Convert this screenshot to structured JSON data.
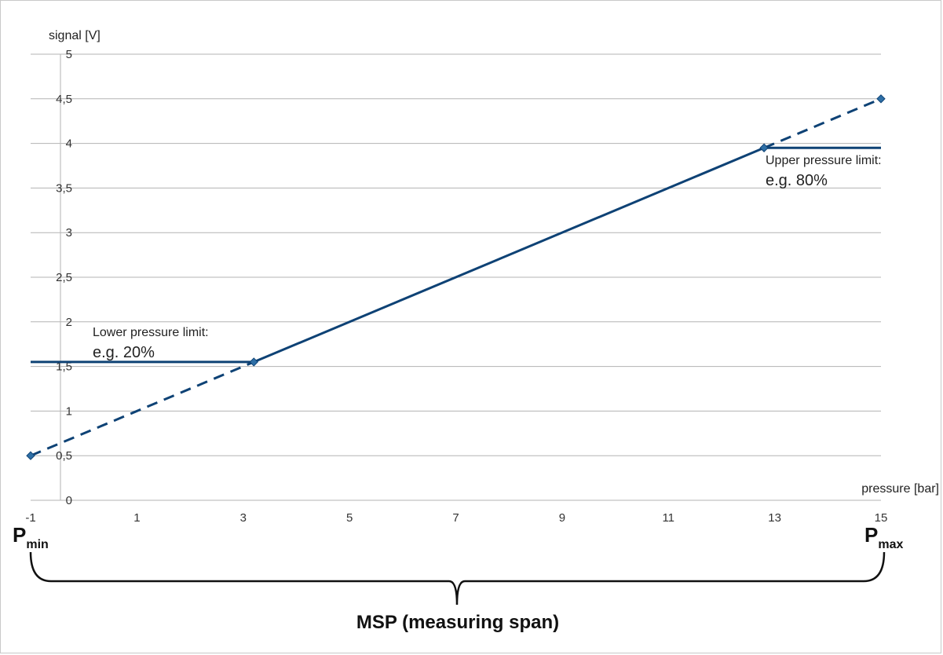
{
  "chart_data": {
    "type": "line",
    "ylabel": "signal [V]",
    "xlabel": "pressure [bar]",
    "xlim": [
      -1,
      15
    ],
    "ylim": [
      0,
      5
    ],
    "x_ticks": [
      -1,
      1,
      3,
      5,
      7,
      9,
      11,
      13,
      15
    ],
    "y_ticks": [
      0,
      0.5,
      1,
      1.5,
      2,
      2.5,
      3,
      3.5,
      4,
      4.5,
      5
    ],
    "y_tick_labels": [
      "0",
      "0,5",
      "1",
      "1,5",
      "2",
      "2,5",
      "3",
      "3,5",
      "4",
      "4,5",
      "5"
    ],
    "grid": true,
    "line_color": "#0e4275",
    "marker_color": "#2e6fa6",
    "series": [
      {
        "style": "dashed",
        "x": [
          -1,
          3.2
        ],
        "y": [
          0.5,
          1.55
        ]
      },
      {
        "style": "solid",
        "x": [
          3.2,
          12.8
        ],
        "y": [
          1.55,
          3.95
        ]
      },
      {
        "style": "dashed",
        "x": [
          12.8,
          15
        ],
        "y": [
          3.95,
          4.5
        ]
      },
      {
        "style": "solid",
        "x": [
          -1,
          3.2
        ],
        "y": [
          1.55,
          1.55
        ]
      },
      {
        "style": "solid",
        "x": [
          12.8,
          15
        ],
        "y": [
          3.95,
          3.95
        ]
      }
    ],
    "markers": [
      {
        "x": -1,
        "y": 0.5
      },
      {
        "x": 3.2,
        "y": 1.55
      },
      {
        "x": 12.8,
        "y": 3.95
      },
      {
        "x": 15,
        "y": 4.5
      }
    ],
    "annotations": {
      "lower_title": "Lower pressure limit:",
      "lower_value": "e.g. 20%",
      "upper_title": "Upper pressure limit:",
      "upper_value": "e.g. 80%"
    },
    "span": {
      "pmin_main": "P",
      "pmin_sub": "min",
      "pmax_main": "P",
      "pmax_sub": "max",
      "label": "MSP (measuring span)"
    }
  }
}
